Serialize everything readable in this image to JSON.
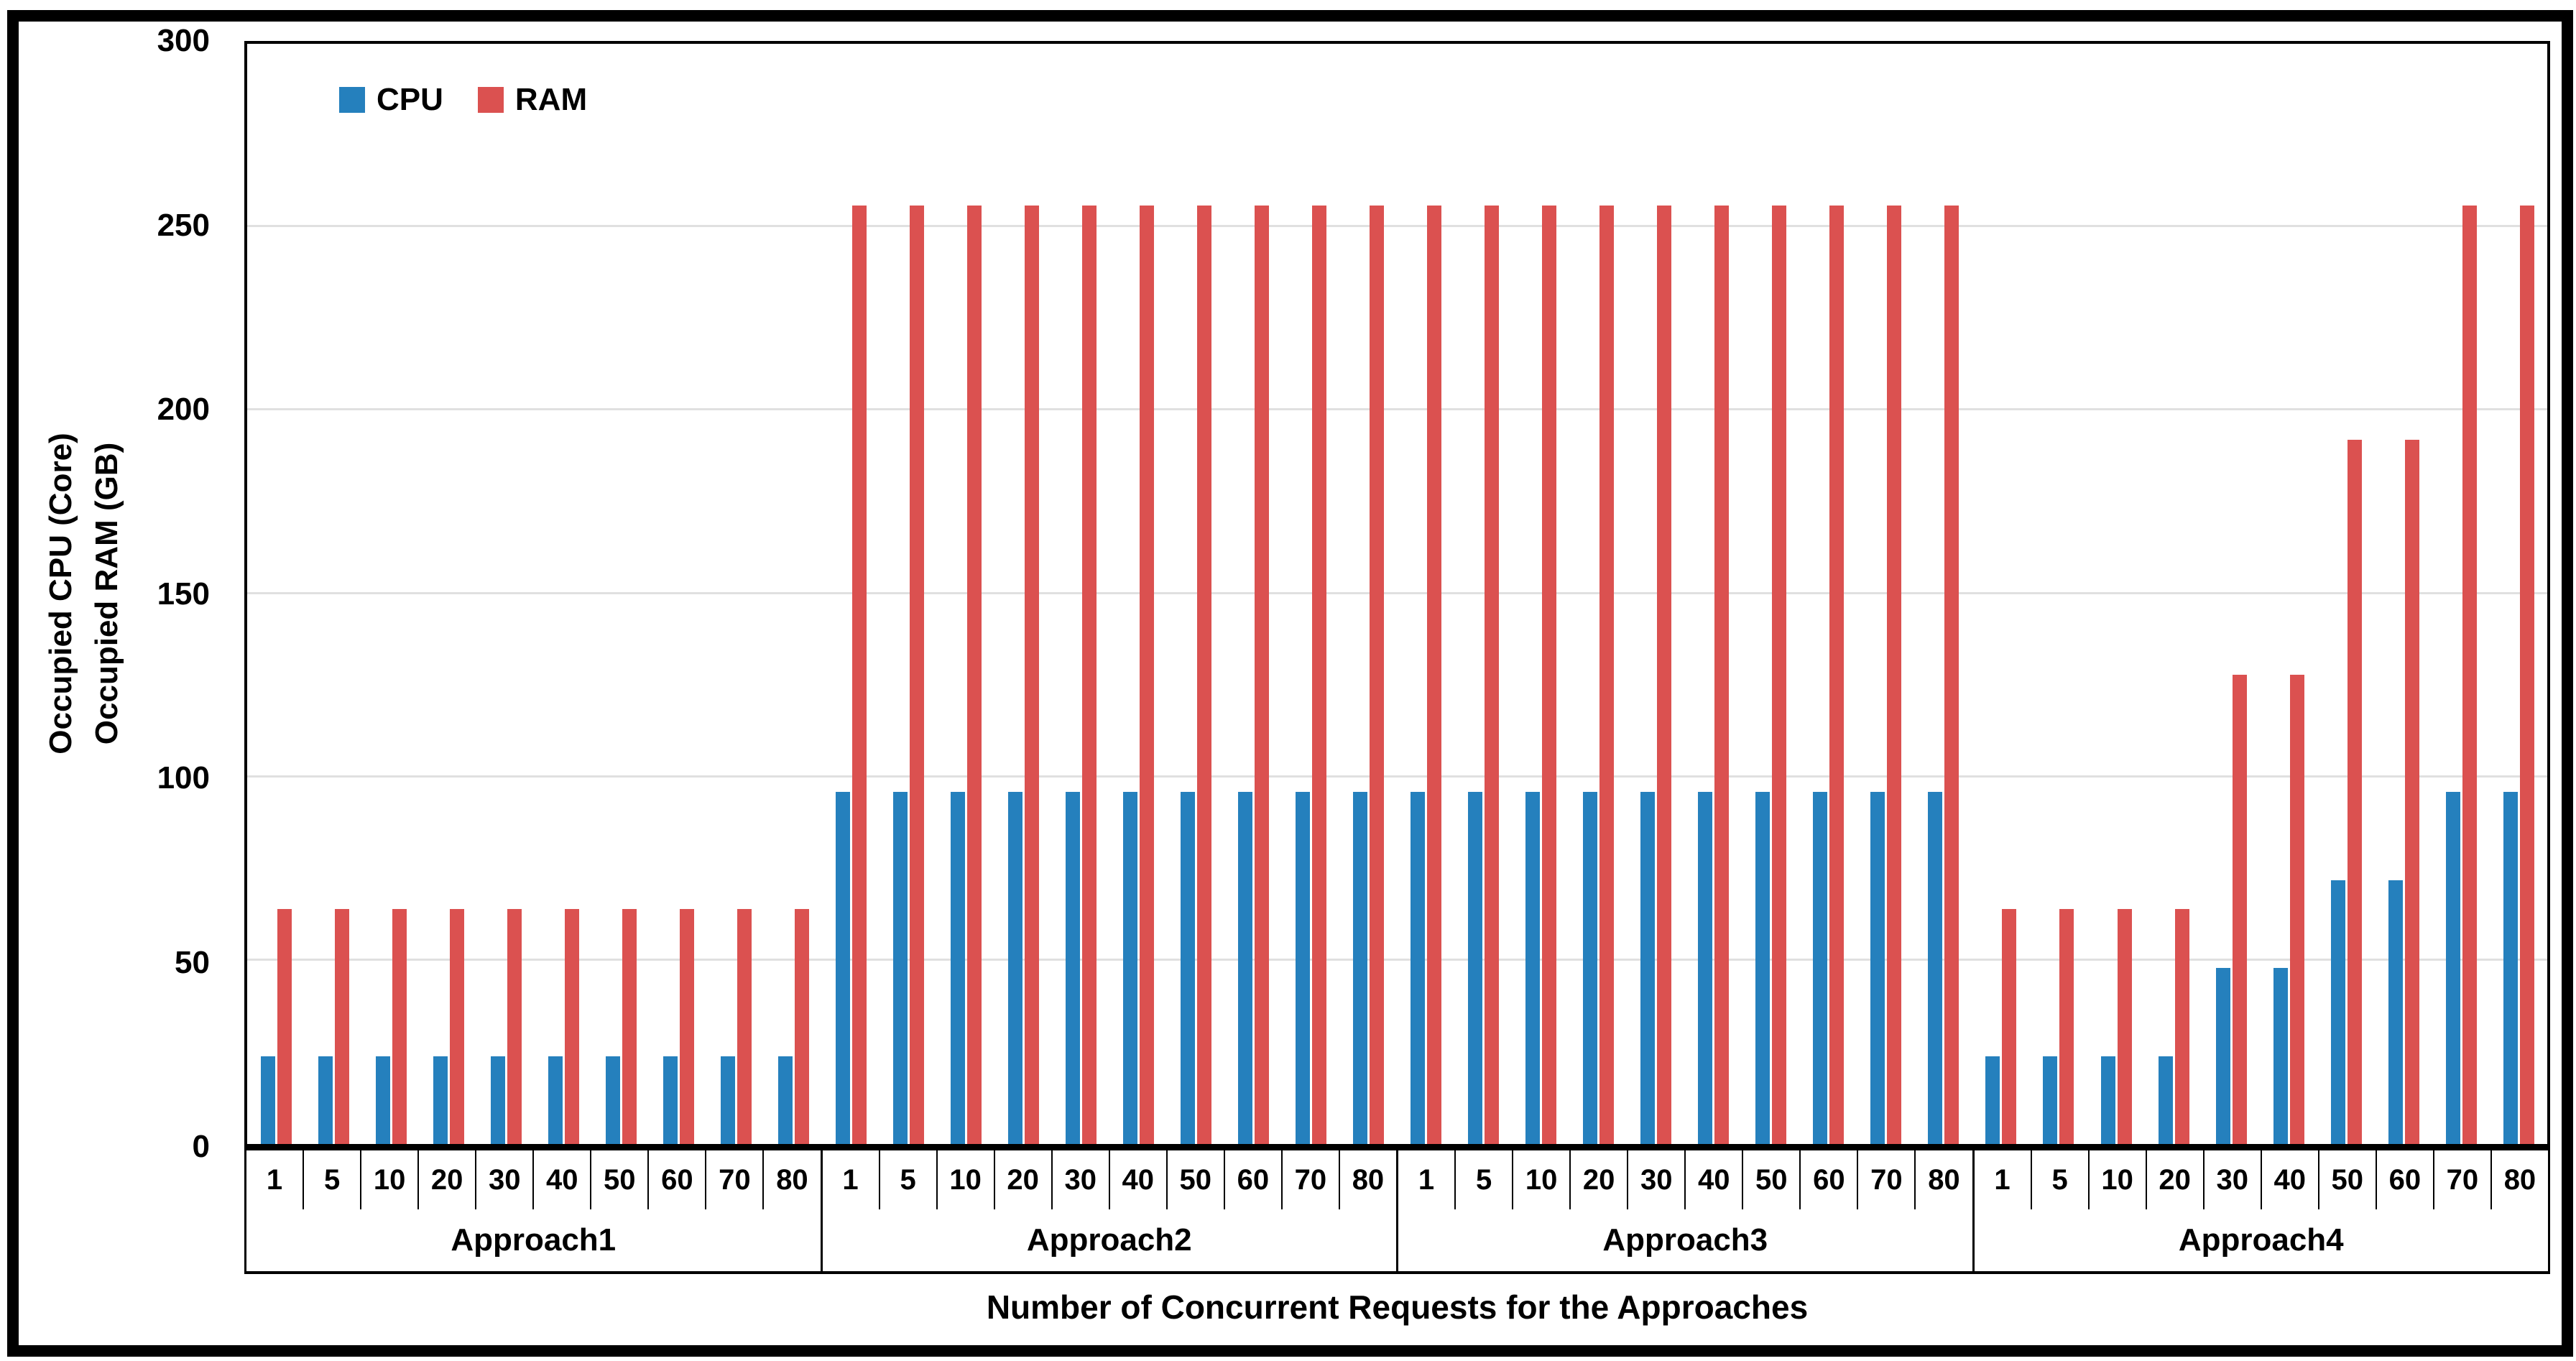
{
  "figure": {
    "background": "#FFFFFF",
    "frame_color": "#000000",
    "gridline_color": "#E0E0E0"
  },
  "chart_data": {
    "type": "bar",
    "title": "",
    "xlabel": "Number of Concurrent Requests for the Approaches",
    "ylabel_lines": [
      "Occupied CPU (Core)",
      "Occupied RAM (GB)"
    ],
    "ylim": [
      0,
      300
    ],
    "ytick_step": 50,
    "yticks": [
      "0",
      "50",
      "100",
      "150",
      "200",
      "250",
      "300"
    ],
    "grid": true,
    "legend_position": "top-left-inside",
    "groups": [
      {
        "label": "Approach1",
        "categories": [
          "1",
          "5",
          "10",
          "20",
          "30",
          "40",
          "50",
          "60",
          "70",
          "80"
        ]
      },
      {
        "label": "Approach2",
        "categories": [
          "1",
          "5",
          "10",
          "20",
          "30",
          "40",
          "50",
          "60",
          "70",
          "80"
        ]
      },
      {
        "label": "Approach3",
        "categories": [
          "1",
          "5",
          "10",
          "20",
          "30",
          "40",
          "50",
          "60",
          "70",
          "80"
        ]
      },
      {
        "label": "Approach4",
        "categories": [
          "1",
          "5",
          "10",
          "20",
          "30",
          "40",
          "50",
          "60",
          "70",
          "80"
        ]
      }
    ],
    "series": [
      {
        "name": "CPU",
        "color": "#2580BD",
        "values": [
          [
            24,
            24,
            24,
            24,
            24,
            24,
            24,
            24,
            24,
            24
          ],
          [
            96,
            96,
            96,
            96,
            96,
            96,
            96,
            96,
            96,
            96
          ],
          [
            96,
            96,
            96,
            96,
            96,
            96,
            96,
            96,
            96,
            96
          ],
          [
            24,
            24,
            24,
            24,
            48,
            48,
            72,
            72,
            96,
            96
          ]
        ]
      },
      {
        "name": "RAM",
        "color": "#DB5150",
        "values": [
          [
            64,
            64,
            64,
            64,
            64,
            64,
            64,
            64,
            64,
            64
          ],
          [
            256,
            256,
            256,
            256,
            256,
            256,
            256,
            256,
            256,
            256
          ],
          [
            256,
            256,
            256,
            256,
            256,
            256,
            256,
            256,
            256,
            256
          ],
          [
            64,
            64,
            64,
            64,
            128,
            128,
            192,
            192,
            256,
            256
          ]
        ]
      }
    ]
  }
}
